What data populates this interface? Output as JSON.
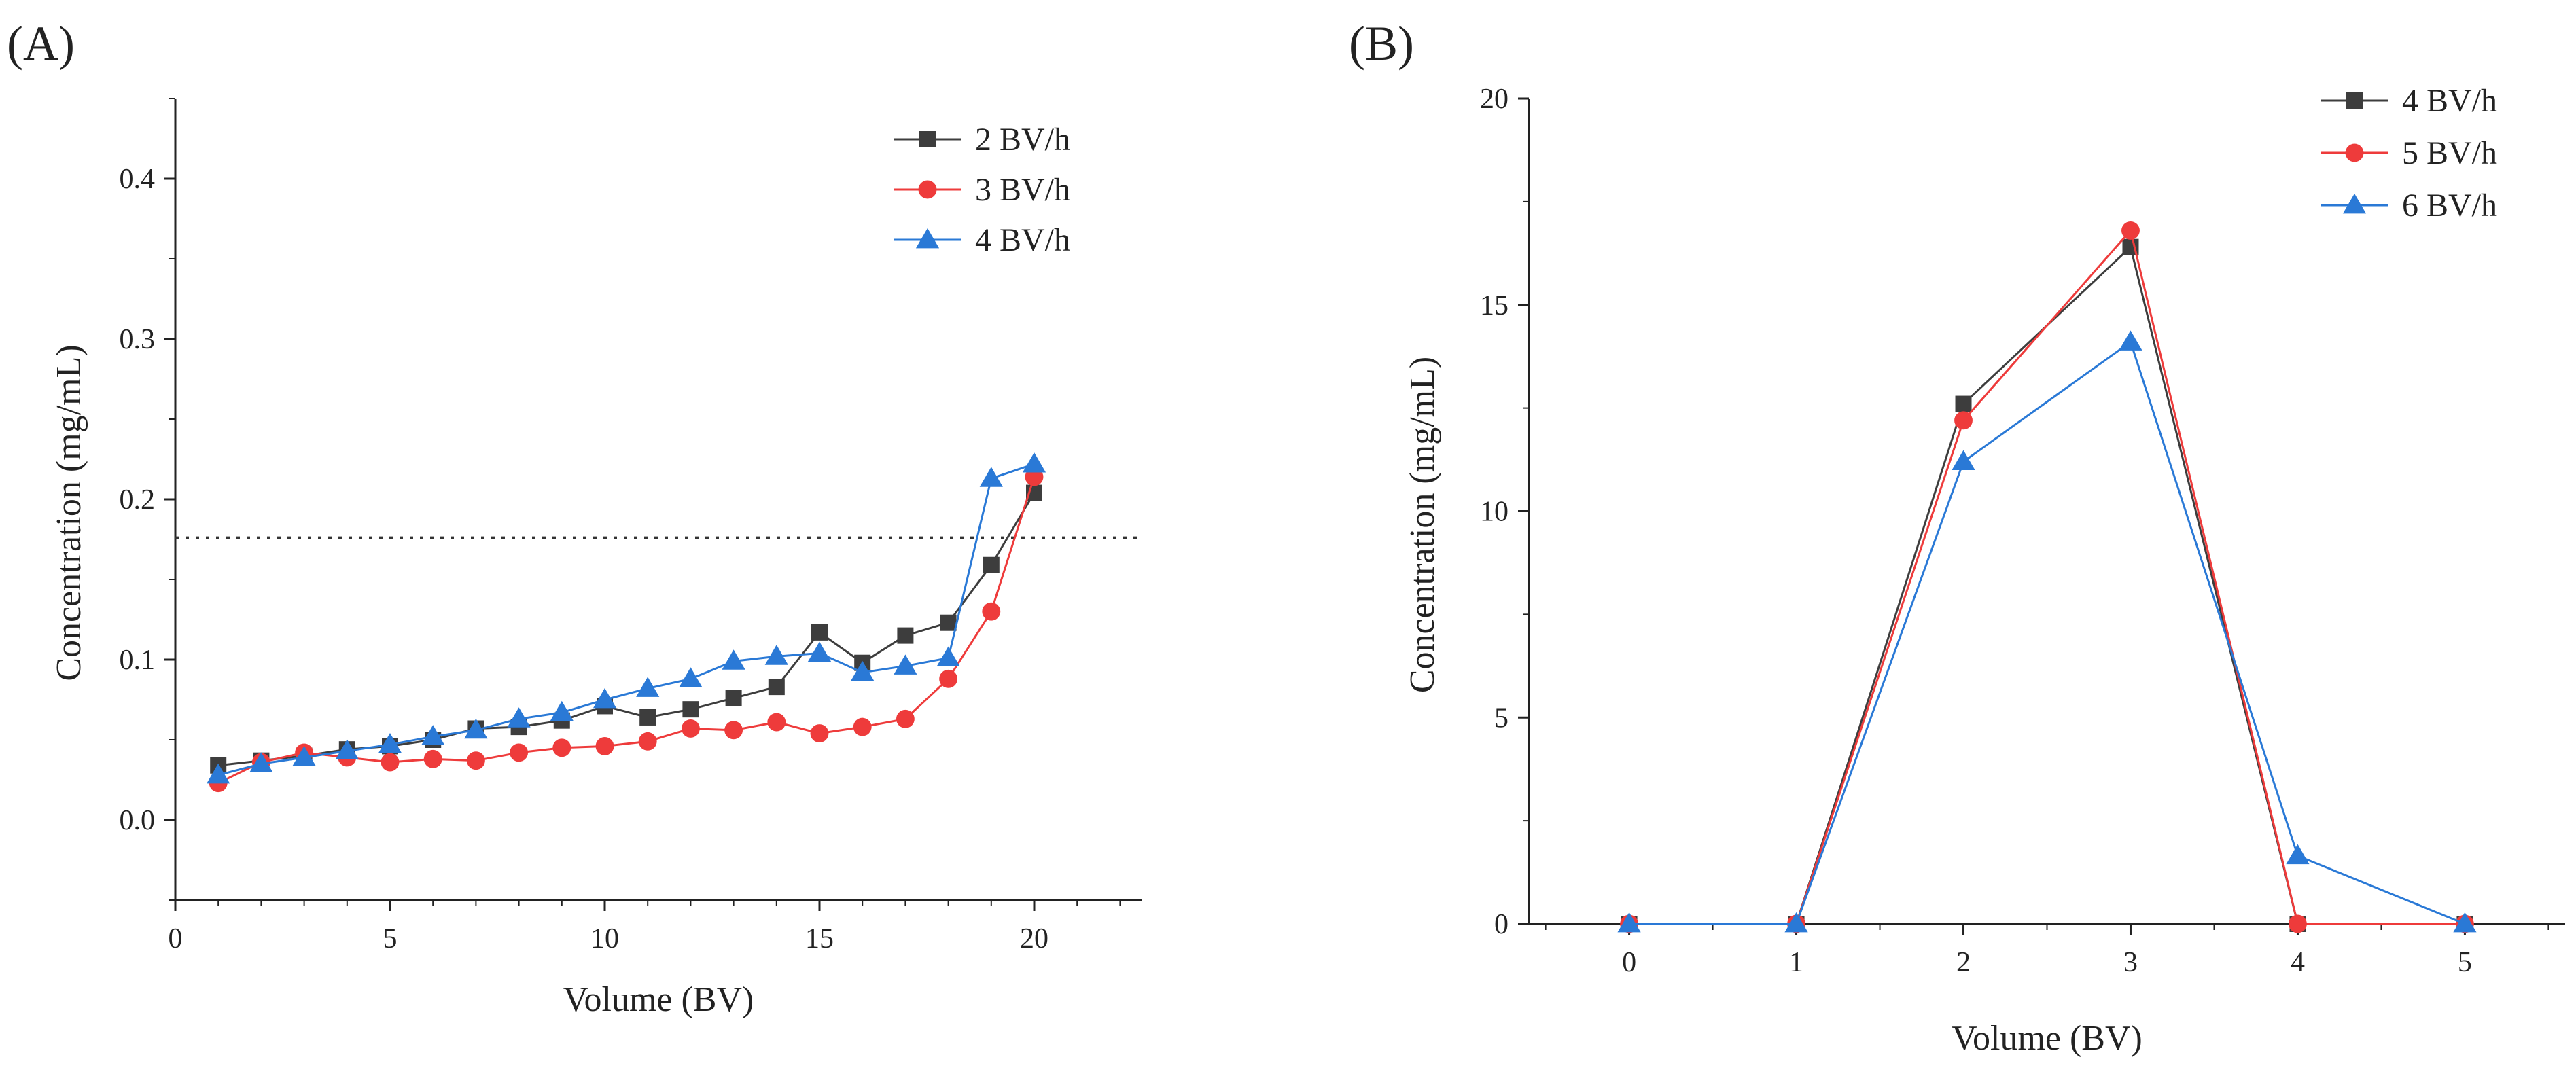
{
  "chart_data": [
    {
      "type": "line",
      "panel_label": "(A)",
      "xlabel": "Volume (BV)",
      "ylabel": "Concentration (mg/mL)",
      "xlim": [
        0,
        22.5
      ],
      "ylim": [
        -0.05,
        0.45
      ],
      "xticks": [
        "0",
        "5",
        "10",
        "15",
        "20"
      ],
      "yticks": [
        "0.0",
        "0.1",
        "0.2",
        "0.3",
        "0.4"
      ],
      "reference_line": {
        "y": 0.176,
        "style": "dotted"
      },
      "legend_position": "top-right",
      "series": [
        {
          "name": "2 BV/h",
          "color": "#3d3d3d",
          "marker": "square",
          "x": [
            1,
            2,
            3,
            4,
            5,
            6,
            7,
            8,
            9,
            10,
            11,
            12,
            13,
            14,
            15,
            16,
            17,
            18,
            19,
            20
          ],
          "values": [
            0.034,
            0.037,
            0.04,
            0.044,
            0.046,
            0.05,
            0.057,
            0.058,
            0.062,
            0.071,
            0.064,
            0.069,
            0.076,
            0.083,
            0.117,
            0.098,
            0.115,
            0.123,
            0.159,
            0.204
          ]
        },
        {
          "name": "3 BV/h",
          "color": "#ee3b3b",
          "marker": "circle",
          "x": [
            1,
            2,
            3,
            4,
            5,
            6,
            7,
            8,
            9,
            10,
            11,
            12,
            13,
            14,
            15,
            16,
            17,
            18,
            19,
            20
          ],
          "values": [
            0.023,
            0.036,
            0.042,
            0.039,
            0.036,
            0.038,
            0.037,
            0.042,
            0.045,
            0.046,
            0.049,
            0.057,
            0.056,
            0.061,
            0.054,
            0.058,
            0.063,
            0.088,
            0.13,
            0.214
          ]
        },
        {
          "name": "4 BV/h",
          "color": "#2a79d6",
          "marker": "triangle",
          "x": [
            1,
            2,
            3,
            4,
            5,
            6,
            7,
            8,
            9,
            10,
            11,
            12,
            13,
            14,
            15,
            16,
            17,
            18,
            19,
            20
          ],
          "values": [
            0.028,
            0.035,
            0.039,
            0.043,
            0.047,
            0.052,
            0.056,
            0.063,
            0.067,
            0.075,
            0.082,
            0.088,
            0.099,
            0.102,
            0.104,
            0.092,
            0.096,
            0.101,
            0.213,
            0.222
          ]
        }
      ]
    },
    {
      "type": "line",
      "panel_label": "(B)",
      "xlabel": "Volume (BV)",
      "ylabel": "Concentration (mg/mL)",
      "xlim": [
        -0.6,
        5.6
      ],
      "ylim": [
        0,
        20
      ],
      "xticks": [
        "0",
        "1",
        "2",
        "3",
        "4",
        "5"
      ],
      "yticks": [
        "0",
        "5",
        "10",
        "15",
        "20"
      ],
      "legend_position": "top-right",
      "series": [
        {
          "name": "4 BV/h",
          "color": "#3d3d3d",
          "marker": "square",
          "x": [
            0,
            1,
            2,
            3,
            4,
            5
          ],
          "values": [
            0,
            0,
            12.6,
            16.4,
            0,
            0
          ]
        },
        {
          "name": "5 BV/h",
          "color": "#ee3b3b",
          "marker": "circle",
          "x": [
            0,
            1,
            2,
            3,
            4,
            5
          ],
          "values": [
            0,
            0,
            12.2,
            16.8,
            0,
            0
          ]
        },
        {
          "name": "6 BV/h",
          "color": "#2a79d6",
          "marker": "triangle",
          "x": [
            0,
            1,
            2,
            3,
            4,
            5
          ],
          "values": [
            0,
            0,
            11.2,
            14.1,
            1.65,
            0
          ]
        }
      ]
    }
  ]
}
